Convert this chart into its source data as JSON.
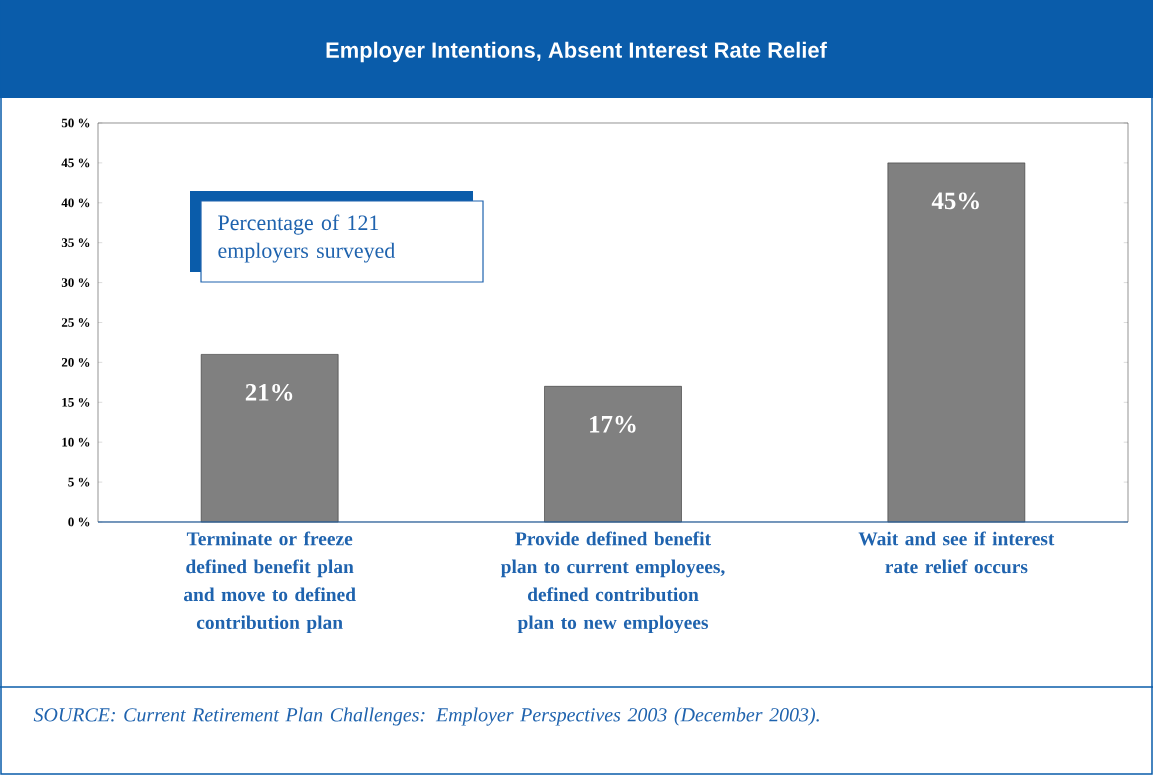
{
  "chart_data": {
    "type": "bar",
    "title": "Employer Intentions, Absent Interest Rate Relief",
    "categories": [
      "Terminate or freeze defined benefit plan and move to defined contribution plan",
      "Provide defined benefit plan to current employees, defined contribution plan to new employees",
      "Wait and see if interest rate relief occurs"
    ],
    "values": [
      21,
      17,
      45
    ],
    "value_labels": [
      "21%",
      "17%",
      "45%"
    ],
    "color": "#808080",
    "ylim": [
      0,
      50
    ],
    "yticks": [
      {
        "value": 0,
        "label": "0 %"
      },
      {
        "value": 5,
        "label": "5 %"
      },
      {
        "value": 10,
        "label": "10 %"
      },
      {
        "value": 15,
        "label": "15 %"
      },
      {
        "value": 20,
        "label": "20 %"
      },
      {
        "value": 25,
        "label": "25 %"
      },
      {
        "value": 30,
        "label": "30 %"
      },
      {
        "value": 35,
        "label": "35 %"
      },
      {
        "value": 40,
        "label": "40 %"
      },
      {
        "value": 45,
        "label": "45 %"
      },
      {
        "value": 50,
        "label": "50 %"
      }
    ],
    "annotations": [
      "Percentage of 121 employers surveyed",
      "SOURCE: Current Retirement Plan Challenges: Employer Perspectives 2003 (December 2003)."
    ]
  }
}
